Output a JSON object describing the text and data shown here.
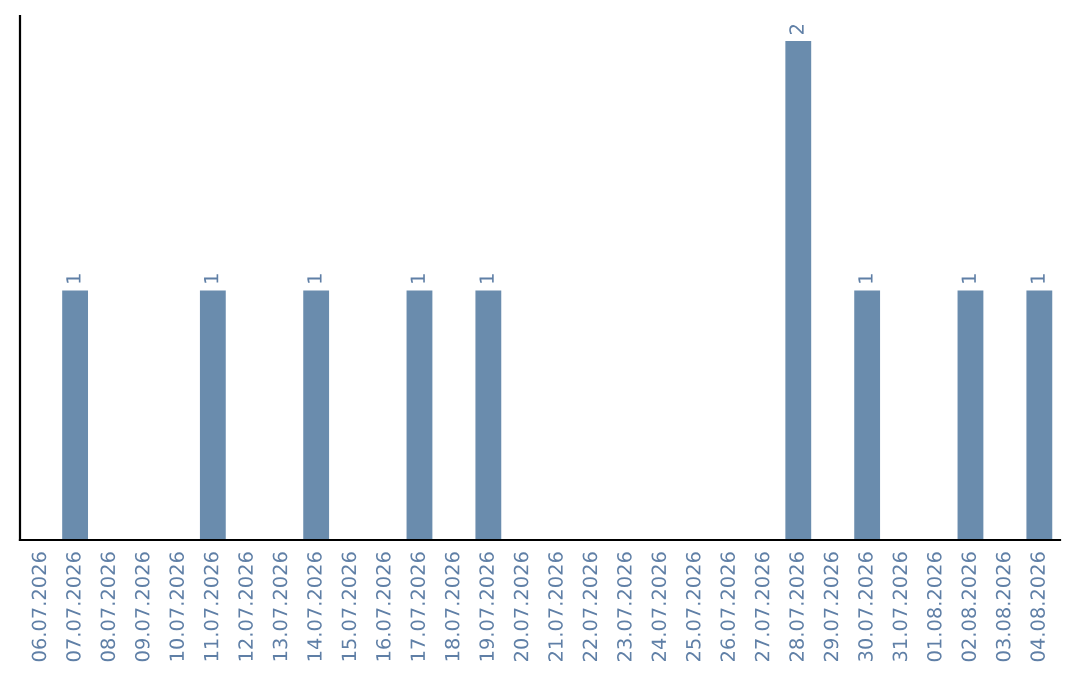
{
  "chart_data": {
    "type": "bar",
    "categories": [
      "06.07.2026",
      "07.07.2026",
      "08.07.2026",
      "09.07.2026",
      "10.07.2026",
      "11.07.2026",
      "12.07.2026",
      "13.07.2026",
      "14.07.2026",
      "15.07.2026",
      "16.07.2026",
      "17.07.2026",
      "18.07.2026",
      "19.07.2026",
      "20.07.2026",
      "21.07.2026",
      "22.07.2026",
      "23.07.2026",
      "24.07.2026",
      "25.07.2026",
      "26.07.2026",
      "27.07.2026",
      "28.07.2026",
      "29.07.2026",
      "30.07.2026",
      "31.07.2026",
      "01.08.2026",
      "02.08.2026",
      "03.08.2026",
      "04.08.2026"
    ],
    "values": [
      0,
      1,
      0,
      0,
      0,
      1,
      0,
      0,
      1,
      0,
      0,
      1,
      0,
      1,
      0,
      0,
      0,
      0,
      0,
      0,
      0,
      0,
      2,
      0,
      1,
      0,
      0,
      1,
      0,
      1
    ],
    "value_labels": [
      null,
      "1",
      null,
      null,
      null,
      "1",
      null,
      null,
      "1",
      null,
      null,
      "1",
      null,
      "1",
      null,
      null,
      null,
      null,
      null,
      null,
      null,
      null,
      "2",
      null,
      "1",
      null,
      null,
      "1",
      null,
      "1"
    ],
    "color": "#6a8cad",
    "grid": false,
    "legend": false
  }
}
